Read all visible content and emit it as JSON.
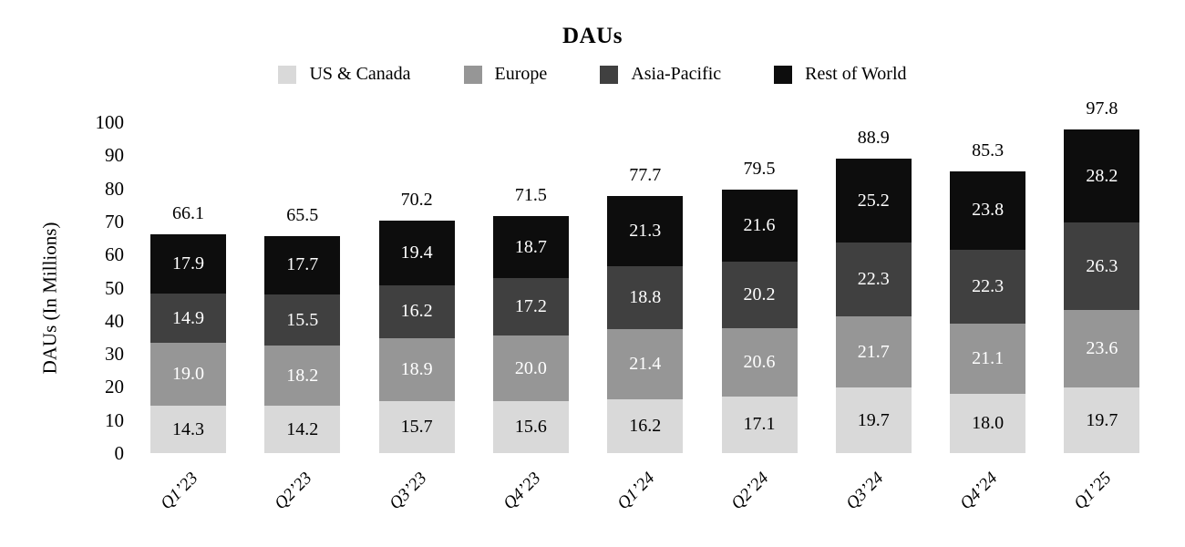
{
  "chart_data": {
    "type": "bar",
    "stacked": true,
    "title": "DAUs",
    "ylabel": "DAUs (In Millions)",
    "xlabel": "",
    "grid": false,
    "legend_position": "top",
    "categories": [
      "Q1’23",
      "Q2’23",
      "Q3’23",
      "Q4’23",
      "Q1’24",
      "Q2’24",
      "Q3’24",
      "Q4’24",
      "Q1’25"
    ],
    "series": [
      {
        "name": "US & Canada",
        "color": "#d9d9d9",
        "value_color": "#000000",
        "values": [
          14.3,
          14.2,
          15.7,
          15.6,
          16.2,
          17.1,
          19.7,
          18.0,
          19.7
        ]
      },
      {
        "name": "Europe",
        "color": "#969696",
        "value_color": "#ffffff",
        "values": [
          19.0,
          18.2,
          18.9,
          20.0,
          21.4,
          20.6,
          21.7,
          21.1,
          23.6
        ]
      },
      {
        "name": "Asia-Pacific",
        "color": "#404040",
        "value_color": "#ffffff",
        "values": [
          14.9,
          15.5,
          16.2,
          17.2,
          18.8,
          20.2,
          22.3,
          22.3,
          26.3
        ]
      },
      {
        "name": "Rest of World",
        "color": "#0d0d0d",
        "value_color": "#ffffff",
        "values": [
          17.9,
          17.7,
          19.4,
          18.7,
          21.3,
          21.6,
          25.2,
          23.8,
          28.2
        ]
      }
    ],
    "totals": [
      66.1,
      65.5,
      70.2,
      71.5,
      77.7,
      79.5,
      88.9,
      85.3,
      97.8
    ],
    "y_axis": {
      "min": 0,
      "max": 100,
      "step": 10,
      "ticks": [
        0,
        10,
        20,
        30,
        40,
        50,
        60,
        70,
        80,
        90,
        100
      ]
    }
  }
}
